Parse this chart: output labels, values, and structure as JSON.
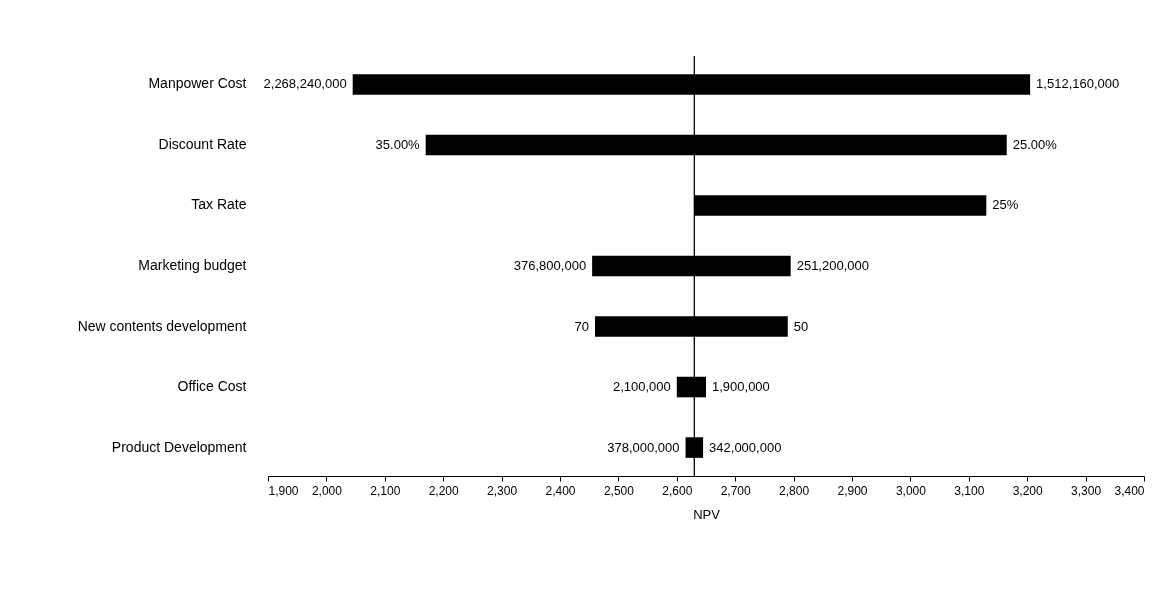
{
  "chart_data": {
    "type": "bar",
    "orientation": "horizontal",
    "xlabel": "NPV",
    "categories": [
      "Manpower Cost",
      "Discount Rate",
      "Tax Rate",
      "Marketing budget",
      "New contents development",
      "Office Cost",
      "Product Development"
    ],
    "series": [
      {
        "color": "#000000",
        "base": [
          2045,
          2170,
          null,
          2455,
          2460,
          2600,
          2615
        ],
        "values": [
          585,
          460,
          null,
          175,
          170,
          30,
          15
        ]
      },
      {
        "color": "#000000",
        "base": [
          2630,
          2630,
          2630,
          2630,
          2630,
          2630,
          2630
        ],
        "values": [
          575,
          535,
          500,
          165,
          160,
          20,
          15
        ]
      }
    ],
    "annotations": [
      {
        "text": "2,268,240,000",
        "x": 2045,
        "y": "Manpower Cost"
      },
      {
        "text": "1,512,160,000",
        "x": 3205,
        "y": "Manpower Cost"
      },
      {
        "text": "35.00%",
        "x": 2170,
        "y": "Discount Rate"
      },
      {
        "text": "25.00%",
        "x": 3165,
        "y": "Discount Rate"
      },
      {
        "text": "25%",
        "x": 3130,
        "y": "Tax Rate"
      },
      {
        "text": "376,800,000",
        "x": 2455,
        "y": "Marketing budget"
      },
      {
        "text": "251,200,000",
        "x": 2795,
        "y": "Marketing budget"
      },
      {
        "text": "70",
        "x": 2460,
        "y": "New contents development"
      },
      {
        "text": "50",
        "x": 2790,
        "y": "New contents development"
      },
      {
        "text": "2,100,000",
        "x": 2600,
        "y": "Office Cost"
      },
      {
        "text": "1,900,000",
        "x": 2650,
        "y": "Office Cost"
      },
      {
        "text": "378,000,000",
        "x": 2615,
        "y": "Product Development"
      },
      {
        "text": "342,000,000",
        "x": 2645,
        "y": "Product Development"
      }
    ],
    "xlim": [
      1900,
      3400
    ],
    "xticks": [
      {
        "value": 1900,
        "label": "1,900"
      },
      {
        "value": 2000,
        "label": "2,000"
      },
      {
        "value": 2100,
        "label": "2,100"
      },
      {
        "value": 2200,
        "label": "2,200"
      },
      {
        "value": 2300,
        "label": "2,300"
      },
      {
        "value": 2400,
        "label": "2,400"
      },
      {
        "value": 2500,
        "label": "2,500"
      },
      {
        "value": 2600,
        "label": "2,600"
      },
      {
        "value": 2700,
        "label": "2,700"
      },
      {
        "value": 2800,
        "label": "2,800"
      },
      {
        "value": 2900,
        "label": "2,900"
      },
      {
        "value": 3000,
        "label": "3,000"
      },
      {
        "value": 3100,
        "label": "3,100"
      },
      {
        "value": 3200,
        "label": "3,200"
      },
      {
        "value": 3300,
        "label": "3,300"
      },
      {
        "value": 3400,
        "label": "3,400"
      }
    ],
    "ref_lines": [
      {
        "axis": "x",
        "value": 2630,
        "color": "#000000"
      }
    ],
    "grid": false,
    "legend": false
  }
}
